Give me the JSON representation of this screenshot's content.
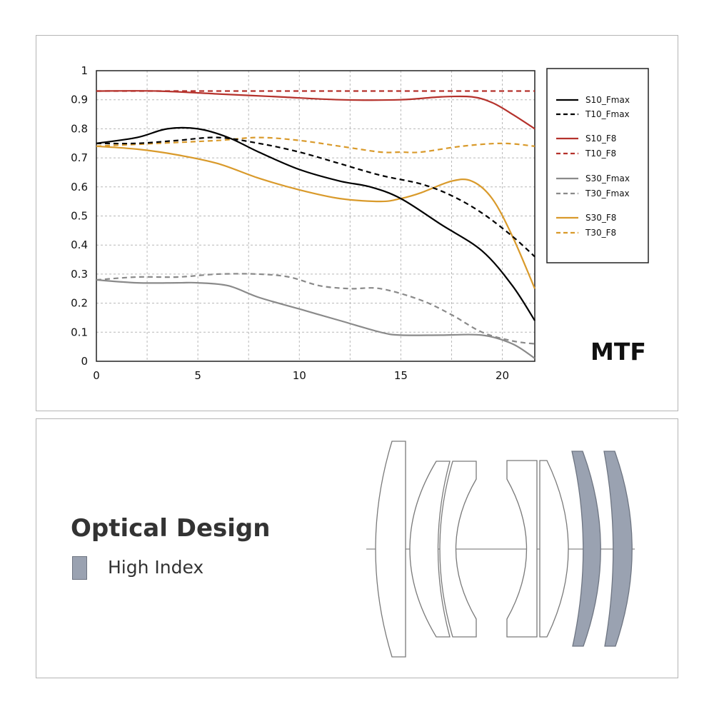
{
  "chart_data": {
    "type": "line",
    "title": "MTF",
    "xlabel": "",
    "ylabel": "",
    "xlim": [
      0,
      21.6
    ],
    "ylim": [
      0,
      1
    ],
    "x_ticks": [
      0,
      5,
      10,
      15,
      20
    ],
    "y_ticks": [
      0,
      0.1,
      0.2,
      0.3,
      0.4,
      0.5,
      0.6,
      0.7,
      0.8,
      0.9,
      1
    ],
    "y_tick_labels": [
      "0",
      "0.1",
      "0.2",
      "0.3",
      "0.4",
      "0.5",
      "0.6",
      "0.7",
      "0.8",
      "0.9",
      "1"
    ],
    "grid": true,
    "legend_position": "right",
    "series": [
      {
        "name": "S10_Fmax",
        "color": "#000000",
        "dash": "solid",
        "x": [
          0,
          2,
          3.5,
          5,
          6.5,
          8,
          10,
          12,
          13.5,
          15,
          17,
          19,
          20.5,
          21.6
        ],
        "y": [
          0.75,
          0.77,
          0.8,
          0.8,
          0.77,
          0.72,
          0.66,
          0.62,
          0.6,
          0.56,
          0.47,
          0.38,
          0.26,
          0.14
        ]
      },
      {
        "name": "T10_Fmax",
        "color": "#000000",
        "dash": "dashed",
        "x": [
          0,
          2,
          4,
          6,
          8,
          10,
          12,
          14,
          16,
          17.5,
          19,
          20.5,
          21.6
        ],
        "y": [
          0.75,
          0.75,
          0.76,
          0.77,
          0.75,
          0.72,
          0.68,
          0.64,
          0.61,
          0.57,
          0.51,
          0.43,
          0.36
        ]
      },
      {
        "name": "S10_F8",
        "color": "#b5322c",
        "dash": "solid",
        "x": [
          0,
          3,
          6,
          9,
          12,
          15,
          17,
          18.5,
          19.5,
          20.5,
          21.6
        ],
        "y": [
          0.93,
          0.93,
          0.92,
          0.91,
          0.9,
          0.9,
          0.91,
          0.91,
          0.89,
          0.85,
          0.8
        ]
      },
      {
        "name": "T10_F8",
        "color": "#b5322c",
        "dash": "dashed",
        "x": [
          0,
          5,
          10,
          15,
          20,
          21.6
        ],
        "y": [
          0.93,
          0.93,
          0.93,
          0.93,
          0.93,
          0.93
        ]
      },
      {
        "name": "S30_Fmax",
        "color": "#8a8a8a",
        "dash": "solid",
        "x": [
          0,
          2,
          4,
          5,
          6.5,
          8,
          10,
          12,
          14,
          15,
          17,
          19,
          20.5,
          21.6
        ],
        "y": [
          0.28,
          0.27,
          0.27,
          0.27,
          0.26,
          0.22,
          0.18,
          0.14,
          0.1,
          0.09,
          0.09,
          0.09,
          0.06,
          0.01
        ]
      },
      {
        "name": "T30_Fmax",
        "color": "#8a8a8a",
        "dash": "dashed",
        "x": [
          0,
          2,
          4,
          6,
          8,
          9.5,
          11,
          12.5,
          14,
          16,
          17.5,
          19,
          20.5,
          21.6
        ],
        "y": [
          0.28,
          0.29,
          0.29,
          0.3,
          0.3,
          0.29,
          0.26,
          0.25,
          0.25,
          0.21,
          0.16,
          0.1,
          0.07,
          0.06
        ]
      },
      {
        "name": "S30_F8",
        "color": "#d99a2b",
        "dash": "solid",
        "x": [
          0,
          2,
          4,
          6,
          8,
          10,
          12,
          14,
          15,
          16,
          17.5,
          18.5,
          19.5,
          20.5,
          21.6
        ],
        "y": [
          0.74,
          0.73,
          0.71,
          0.68,
          0.63,
          0.59,
          0.56,
          0.55,
          0.56,
          0.58,
          0.62,
          0.62,
          0.56,
          0.43,
          0.25
        ]
      },
      {
        "name": "T30_F8",
        "color": "#d99a2b",
        "dash": "dashed",
        "x": [
          0,
          3,
          6,
          8,
          10,
          12,
          14,
          15,
          16,
          18,
          20,
          21.6
        ],
        "y": [
          0.74,
          0.75,
          0.76,
          0.77,
          0.76,
          0.74,
          0.72,
          0.72,
          0.72,
          0.74,
          0.75,
          0.74
        ]
      }
    ]
  },
  "mtf_title": "MTF",
  "optical_design": {
    "title": "Optical Design",
    "legend_label": "High Index",
    "colors": {
      "high_index_fill": "#9aa2b1",
      "outline": "#7a7a7a"
    }
  }
}
